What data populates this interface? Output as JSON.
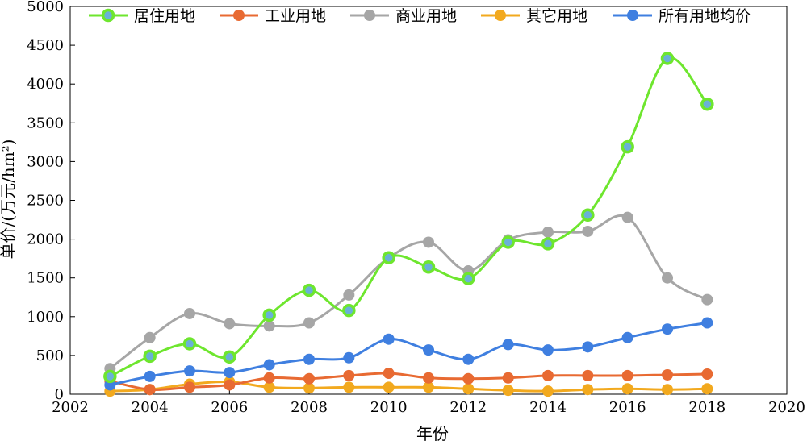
{
  "chart_data": {
    "type": "line",
    "xlabel": "年份",
    "ylabel": "单价/(万元/hm²)",
    "xlim": [
      2002,
      2020
    ],
    "ylim": [
      0,
      5000
    ],
    "xticks": [
      2002,
      2004,
      2006,
      2008,
      2010,
      2012,
      2014,
      2016,
      2018,
      2020
    ],
    "yticks": [
      0,
      500,
      1000,
      1500,
      2000,
      2500,
      3000,
      3500,
      4000,
      4500,
      5000
    ],
    "legend_position": "top",
    "grid": false,
    "x": [
      2003,
      2004,
      2005,
      2006,
      2007,
      2008,
      2009,
      2010,
      2011,
      2012,
      2013,
      2014,
      2015,
      2016,
      2017,
      2018
    ],
    "series": [
      {
        "name": "居住用地",
        "color": "#6ee62e",
        "marker_fill": "#6ab0d8",
        "marker_edge": "#6ee62e",
        "values": [
          230,
          490,
          650,
          480,
          1020,
          1340,
          1080,
          1760,
          1640,
          1490,
          1960,
          1940,
          2310,
          3190,
          4330,
          3740
        ]
      },
      {
        "name": "工业用地",
        "color": "#e86a32",
        "values": [
          170,
          60,
          90,
          120,
          210,
          200,
          240,
          270,
          210,
          200,
          210,
          240,
          240,
          240,
          250,
          260
        ]
      },
      {
        "name": "商业用地",
        "color": "#a6a6a6",
        "values": [
          330,
          730,
          1040,
          910,
          880,
          920,
          1280,
          1760,
          1960,
          1590,
          1990,
          2090,
          2100,
          2280,
          1500,
          1220
        ]
      },
      {
        "name": "其它用地",
        "color": "#f2a91e",
        "values": [
          40,
          60,
          130,
          160,
          90,
          80,
          90,
          90,
          90,
          70,
          50,
          40,
          60,
          70,
          60,
          70
        ]
      },
      {
        "name": "所有用地均价",
        "color": "#3f7fe0",
        "values": [
          120,
          230,
          300,
          280,
          380,
          450,
          470,
          710,
          570,
          450,
          640,
          570,
          610,
          730,
          840,
          920
        ]
      }
    ]
  }
}
